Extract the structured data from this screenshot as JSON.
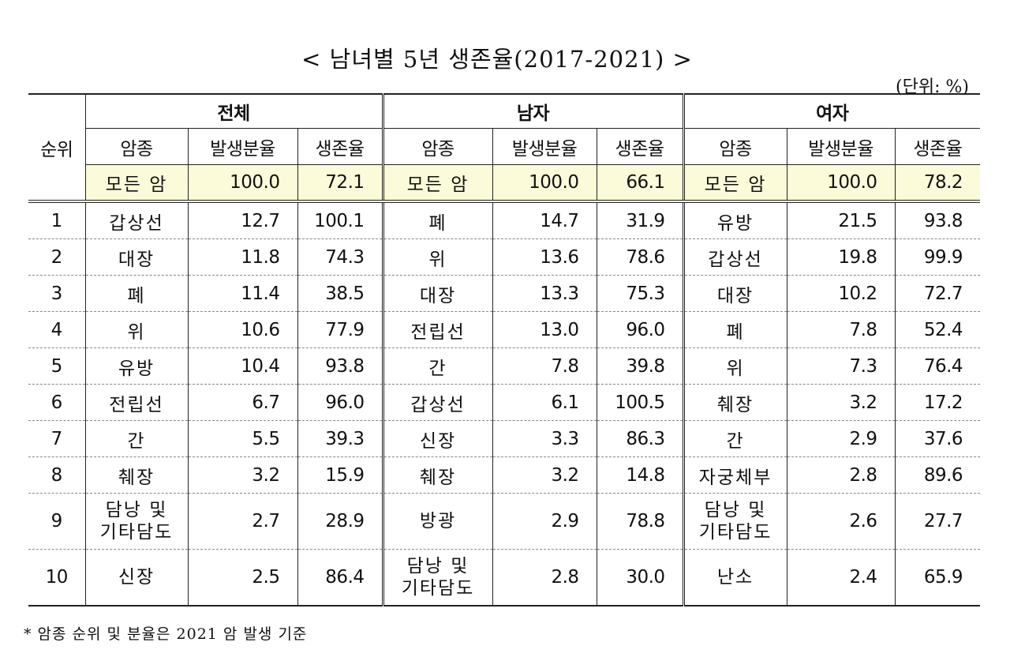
{
  "title": "< 남녀별 5년 생존율(2017-2021) >",
  "unit": "(단위: %)",
  "headers": {
    "rank": "순위",
    "groups": [
      "전체",
      "남자",
      "여자"
    ],
    "cancer": "암종",
    "incidence": "발생분율",
    "survival": "생존율"
  },
  "all_cancers": {
    "total": {
      "name": "모든 암",
      "incidence": "100.0",
      "survival": "72.1"
    },
    "male": {
      "name": "모든 암",
      "incidence": "100.0",
      "survival": "66.1"
    },
    "female": {
      "name": "모든 암",
      "incidence": "100.0",
      "survival": "78.2"
    }
  },
  "rows": [
    {
      "rank": "1",
      "total": {
        "name": "갑상선",
        "incidence": "12.7",
        "survival": "100.1"
      },
      "male": {
        "name": "폐",
        "incidence": "14.7",
        "survival": "31.9"
      },
      "female": {
        "name": "유방",
        "incidence": "21.5",
        "survival": "93.8"
      }
    },
    {
      "rank": "2",
      "total": {
        "name": "대장",
        "incidence": "11.8",
        "survival": "74.3"
      },
      "male": {
        "name": "위",
        "incidence": "13.6",
        "survival": "78.6"
      },
      "female": {
        "name": "갑상선",
        "incidence": "19.8",
        "survival": "99.9"
      }
    },
    {
      "rank": "3",
      "total": {
        "name": "폐",
        "incidence": "11.4",
        "survival": "38.5"
      },
      "male": {
        "name": "대장",
        "incidence": "13.3",
        "survival": "75.3"
      },
      "female": {
        "name": "대장",
        "incidence": "10.2",
        "survival": "72.7"
      }
    },
    {
      "rank": "4",
      "total": {
        "name": "위",
        "incidence": "10.6",
        "survival": "77.9"
      },
      "male": {
        "name": "전립선",
        "incidence": "13.0",
        "survival": "96.0"
      },
      "female": {
        "name": "폐",
        "incidence": "7.8",
        "survival": "52.4"
      }
    },
    {
      "rank": "5",
      "total": {
        "name": "유방",
        "incidence": "10.4",
        "survival": "93.8"
      },
      "male": {
        "name": "간",
        "incidence": "7.8",
        "survival": "39.8"
      },
      "female": {
        "name": "위",
        "incidence": "7.3",
        "survival": "76.4"
      }
    },
    {
      "rank": "6",
      "total": {
        "name": "전립선",
        "incidence": "6.7",
        "survival": "96.0"
      },
      "male": {
        "name": "갑상선",
        "incidence": "6.1",
        "survival": "100.5"
      },
      "female": {
        "name": "췌장",
        "incidence": "3.2",
        "survival": "17.2"
      }
    },
    {
      "rank": "7",
      "total": {
        "name": "간",
        "incidence": "5.5",
        "survival": "39.3"
      },
      "male": {
        "name": "신장",
        "incidence": "3.3",
        "survival": "86.3"
      },
      "female": {
        "name": "간",
        "incidence": "2.9",
        "survival": "37.6"
      }
    },
    {
      "rank": "8",
      "total": {
        "name": "췌장",
        "incidence": "3.2",
        "survival": "15.9"
      },
      "male": {
        "name": "췌장",
        "incidence": "3.2",
        "survival": "14.8"
      },
      "female": {
        "name": "자궁체부",
        "incidence": "2.8",
        "survival": "89.6"
      }
    },
    {
      "rank": "9",
      "total": {
        "name": "담낭 및\n기타담도",
        "incidence": "2.7",
        "survival": "28.9"
      },
      "male": {
        "name": "방광",
        "incidence": "2.9",
        "survival": "78.8"
      },
      "female": {
        "name": "담낭 및\n기타담도",
        "incidence": "2.6",
        "survival": "27.7"
      }
    },
    {
      "rank": "10",
      "total": {
        "name": "신장",
        "incidence": "2.5",
        "survival": "86.4"
      },
      "male": {
        "name": "담낭 및\n기타담도",
        "incidence": "2.8",
        "survival": "30.0"
      },
      "female": {
        "name": "난소",
        "incidence": "2.4",
        "survival": "65.9"
      }
    }
  ],
  "footnote": "* 암종 순위 및 분율은 2021 암 발생 기준"
}
